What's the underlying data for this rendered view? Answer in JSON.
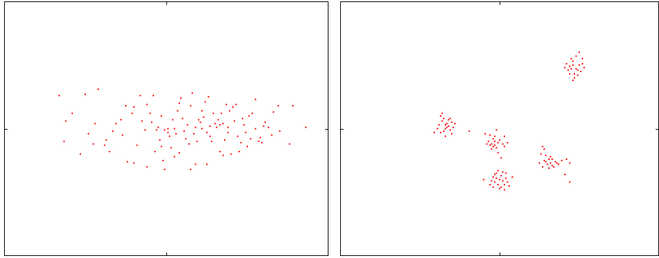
{
  "figure": {
    "background": "#ffffff",
    "axis_color": "#000000",
    "point_color": "#ff0000"
  },
  "chart_data": [
    {
      "type": "scatter",
      "title": "",
      "xlabel": "",
      "ylabel": "",
      "xlim": [
        -1,
        1
      ],
      "ylim": [
        -1,
        1
      ],
      "xticks": [
        0
      ],
      "yticks": [
        0
      ],
      "tick_labels_visible": false,
      "grid": false,
      "legend": "none",
      "series": [
        {
          "points": [
            [
              -0.66,
              0.26
            ],
            [
              -0.42,
              0.31
            ],
            [
              -0.62,
              0.06
            ],
            [
              -0.63,
              -0.1
            ],
            [
              -0.48,
              -0.04
            ],
            [
              -0.44,
              0.04
            ],
            [
              -0.45,
              -0.12
            ],
            [
              -0.37,
              -0.09
            ],
            [
              -0.33,
              -0.02
            ],
            [
              -0.31,
              0.04
            ],
            [
              -0.27,
              -0.05
            ],
            [
              -0.25,
              0.18
            ],
            [
              -0.21,
              0.12
            ],
            [
              -0.2,
              0.17
            ],
            [
              -0.16,
              0.26
            ],
            [
              -0.15,
              0.06
            ],
            [
              -0.13,
              -0.01
            ],
            [
              -0.12,
              0.19
            ],
            [
              -0.1,
              0.12
            ],
            [
              -0.09,
              0.05
            ],
            [
              -0.08,
              0.26
            ],
            [
              -0.06,
              -0.01
            ],
            [
              -0.05,
              0.01
            ],
            [
              -0.04,
              -0.09
            ],
            [
              -0.03,
              0.1
            ],
            [
              -0.03,
              -0.14
            ],
            [
              -0.02,
              -0.25
            ],
            [
              -0.01,
              -0.32
            ],
            [
              -0.01,
              -0.01
            ],
            [
              0.01,
              -0.03
            ],
            [
              0.01,
              0.0
            ],
            [
              0.02,
              -0.06
            ],
            [
              0.03,
              -0.15
            ],
            [
              0.04,
              0.07
            ],
            [
              0.05,
              0.0
            ],
            [
              0.06,
              -0.04
            ],
            [
              0.07,
              0.14
            ],
            [
              0.08,
              0.2
            ],
            [
              0.09,
              0.24
            ],
            [
              0.1,
              0.08
            ],
            [
              0.11,
              -0.02
            ],
            [
              0.12,
              -0.08
            ],
            [
              0.13,
              0.03
            ],
            [
              0.14,
              -0.12
            ],
            [
              0.15,
              0.18
            ],
            [
              0.16,
              0.28
            ],
            [
              0.17,
              -0.04
            ],
            [
              0.18,
              0.01
            ],
            [
              0.19,
              -0.1
            ],
            [
              0.2,
              0.07
            ],
            [
              0.21,
              0.05
            ],
            [
              0.22,
              0.0
            ],
            [
              0.22,
              0.14
            ],
            [
              0.23,
              0.09
            ],
            [
              0.24,
              0.21
            ],
            [
              0.25,
              -0.03
            ],
            [
              0.26,
              0.25
            ],
            [
              0.27,
              0.02
            ],
            [
              0.28,
              -0.1
            ],
            [
              0.29,
              0.12
            ],
            [
              0.3,
              0.04
            ],
            [
              0.31,
              0.01
            ],
            [
              0.32,
              0.07
            ],
            [
              0.33,
              -0.18
            ],
            [
              0.34,
              0.12
            ],
            [
              0.35,
              0.04
            ],
            [
              0.36,
              -0.09
            ],
            [
              0.37,
              0.19
            ],
            [
              0.38,
              -0.03
            ],
            [
              0.38,
              0.01
            ],
            [
              0.39,
              0.14
            ],
            [
              0.4,
              -0.2
            ],
            [
              0.42,
              0.06
            ],
            [
              0.43,
              0.19
            ],
            [
              0.44,
              -0.06
            ],
            [
              0.46,
              -0.11
            ],
            [
              0.47,
              0.08
            ],
            [
              0.48,
              0.03
            ],
            [
              0.5,
              -0.14
            ],
            [
              0.51,
              0.1
            ],
            [
              0.53,
              0.12
            ],
            [
              0.55,
              0.0
            ],
            [
              0.57,
              -0.1
            ],
            [
              0.59,
              -0.11
            ],
            [
              0.61,
              0.05
            ],
            [
              0.63,
              0.01
            ],
            [
              0.65,
              -0.05
            ],
            [
              0.66,
              0.13
            ],
            [
              0.69,
              0.18
            ],
            [
              -0.58,
              0.12
            ],
            [
              -0.53,
              -0.2
            ],
            [
              -0.5,
              0.27
            ],
            [
              -0.38,
              -0.13
            ],
            [
              -0.24,
              -0.26
            ],
            [
              -0.18,
              -0.13
            ],
            [
              -0.12,
              -0.3
            ],
            [
              -0.07,
              -0.18
            ],
            [
              0.05,
              -0.22
            ],
            [
              0.15,
              -0.32
            ],
            [
              0.25,
              -0.28
            ],
            [
              0.35,
              -0.21
            ],
            [
              0.45,
              -0.18
            ],
            [
              0.55,
              0.23
            ],
            [
              0.58,
              -0.07
            ],
            [
              -0.2,
              -0.27
            ],
            [
              0.08,
              -0.19
            ],
            [
              0.18,
              -0.28
            ],
            [
              0.27,
              -0.06
            ],
            [
              0.33,
              0.03
            ],
            [
              0.41,
              0.17
            ],
            [
              0.49,
              -0.03
            ],
            [
              0.52,
              -0.08
            ],
            [
              0.6,
              0.02
            ],
            [
              0.7,
              -0.02
            ],
            [
              0.76,
              -0.12
            ],
            [
              0.78,
              0.18
            ],
            [
              0.86,
              0.01
            ],
            [
              -0.35,
              -0.18
            ],
            [
              -0.28,
              0.07
            ]
          ]
        }
      ]
    },
    {
      "type": "scatter",
      "title": "",
      "xlabel": "",
      "ylabel": "",
      "xlim": [
        -1,
        1
      ],
      "ylim": [
        -1,
        1
      ],
      "xticks": [
        0
      ],
      "yticks": [
        0
      ],
      "tick_labels_visible": false,
      "grid": false,
      "legend": "none",
      "series": [
        {
          "points": [
            [
              -0.35,
              0.08
            ],
            [
              -0.33,
              0.01
            ],
            [
              -0.34,
              0.0
            ],
            [
              -0.36,
              0.06
            ],
            [
              -0.32,
              0.02
            ],
            [
              -0.3,
              0.05
            ],
            [
              -0.38,
              0.03
            ],
            [
              -0.31,
              -0.01
            ],
            [
              -0.29,
              0.01
            ],
            [
              -0.37,
              -0.03
            ],
            [
              -0.34,
              -0.06
            ],
            [
              -0.39,
              0.0
            ],
            [
              -0.33,
              0.04
            ],
            [
              -0.36,
              0.12
            ],
            [
              -0.3,
              -0.04
            ],
            [
              -0.41,
              -0.03
            ],
            [
              -0.28,
              0.04
            ],
            [
              -0.32,
              0.07
            ],
            [
              -0.35,
              -0.02
            ],
            [
              -0.37,
              0.1
            ],
            [
              -0.19,
              -0.02
            ],
            [
              -0.31,
              0.08
            ],
            [
              -0.34,
              0.03
            ],
            [
              -0.05,
              -0.12
            ],
            [
              -0.03,
              -0.1
            ],
            [
              -0.06,
              -0.13
            ],
            [
              -0.04,
              -0.08
            ],
            [
              -0.02,
              -0.15
            ],
            [
              -0.01,
              -0.11
            ],
            [
              -0.07,
              -0.1
            ],
            [
              -0.05,
              -0.16
            ],
            [
              -0.03,
              -0.06
            ],
            [
              -0.02,
              -0.01
            ],
            [
              0.03,
              -0.06
            ],
            [
              0.02,
              -0.12
            ],
            [
              -0.01,
              -0.19
            ],
            [
              0.01,
              -0.23
            ],
            [
              -0.09,
              -0.04
            ],
            [
              -0.08,
              -0.12
            ],
            [
              -0.04,
              -0.14
            ],
            [
              0.0,
              -0.09
            ],
            [
              0.05,
              -0.11
            ],
            [
              -0.06,
              -0.05
            ],
            [
              -0.03,
              -0.13
            ],
            [
              0.03,
              -0.14
            ],
            [
              0.3,
              -0.28
            ],
            [
              0.32,
              -0.27
            ],
            [
              0.35,
              -0.26
            ],
            [
              0.31,
              -0.24
            ],
            [
              0.33,
              -0.29
            ],
            [
              0.29,
              -0.26
            ],
            [
              0.34,
              -0.3
            ],
            [
              0.36,
              -0.27
            ],
            [
              0.28,
              -0.25
            ],
            [
              0.33,
              -0.24
            ],
            [
              0.31,
              -0.31
            ],
            [
              0.37,
              -0.28
            ],
            [
              0.27,
              -0.3
            ],
            [
              0.39,
              -0.25
            ],
            [
              0.29,
              -0.21
            ],
            [
              0.28,
              -0.16
            ],
            [
              0.27,
              -0.14
            ],
            [
              0.26,
              -0.2
            ],
            [
              0.42,
              -0.24
            ],
            [
              0.44,
              -0.27
            ],
            [
              0.41,
              -0.36
            ],
            [
              0.44,
              -0.42
            ],
            [
              0.25,
              -0.27
            ],
            [
              0.32,
              -0.22
            ],
            [
              0.45,
              0.47
            ],
            [
              0.46,
              0.5
            ],
            [
              0.48,
              0.47
            ],
            [
              0.47,
              0.43
            ],
            [
              0.49,
              0.46
            ],
            [
              0.44,
              0.49
            ],
            [
              0.5,
              0.5
            ],
            [
              0.46,
              0.53
            ],
            [
              0.43,
              0.46
            ],
            [
              0.51,
              0.45
            ],
            [
              0.47,
              0.4
            ],
            [
              0.42,
              0.51
            ],
            [
              0.52,
              0.51
            ],
            [
              0.45,
              0.55
            ],
            [
              0.48,
              0.57
            ],
            [
              0.5,
              0.6
            ],
            [
              0.53,
              0.48
            ],
            [
              0.49,
              0.42
            ],
            [
              0.41,
              0.48
            ],
            [
              0.46,
              0.38
            ],
            [
              0.52,
              0.55
            ],
            [
              0.44,
              0.43
            ],
            [
              -0.02,
              -0.39
            ],
            [
              0.0,
              -0.4
            ],
            [
              -0.03,
              -0.42
            ],
            [
              0.01,
              -0.37
            ],
            [
              -0.01,
              -0.44
            ],
            [
              0.02,
              -0.41
            ],
            [
              -0.04,
              -0.38
            ],
            [
              0.03,
              -0.44
            ],
            [
              -0.05,
              -0.41
            ],
            [
              0.01,
              -0.46
            ],
            [
              -0.02,
              -0.35
            ],
            [
              0.04,
              -0.39
            ],
            [
              0.0,
              -0.47
            ],
            [
              -0.03,
              -0.36
            ],
            [
              0.02,
              -0.34
            ],
            [
              0.05,
              -0.42
            ],
            [
              -0.06,
              -0.44
            ],
            [
              0.03,
              -0.48
            ],
            [
              -0.01,
              -0.33
            ],
            [
              0.08,
              -0.38
            ],
            [
              -0.1,
              -0.4
            ],
            [
              0.04,
              -0.35
            ],
            [
              -0.04,
              -0.46
            ],
            [
              0.06,
              -0.45
            ]
          ]
        }
      ]
    }
  ]
}
